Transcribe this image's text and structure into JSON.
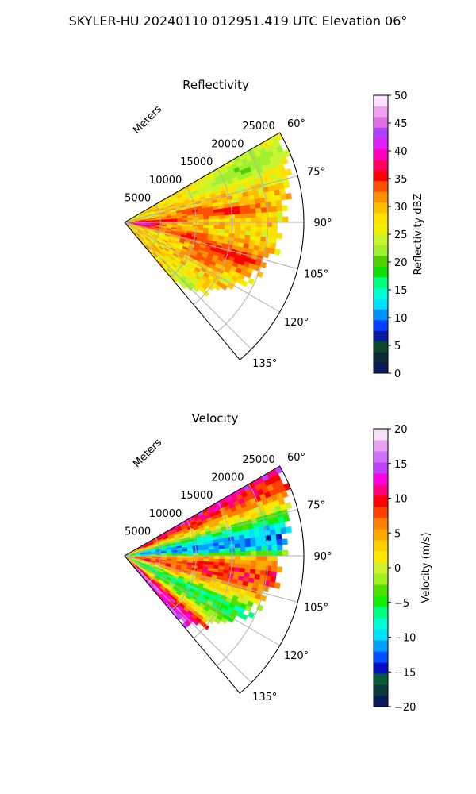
{
  "figure": {
    "title": "SKYLER-HU  20240110  012951.419 UTC Elevation 06°"
  },
  "chart_data": [
    {
      "type": "heatmap",
      "projection": "polar-sector",
      "title": "Reflectivity",
      "range_label": "Meters",
      "range_ticks": [
        5000,
        10000,
        15000,
        20000,
        25000
      ],
      "range_tick_labels": [
        "5000",
        "10000",
        "15000",
        "20000",
        "25000"
      ],
      "rmax": 25000,
      "azimuth_range_deg": [
        60,
        140
      ],
      "azimuth_ticks": [
        60,
        75,
        90,
        105,
        120,
        135
      ],
      "azimuth_tick_labels": [
        "60°",
        "75°",
        "90°",
        "105°",
        "120°",
        "135°"
      ],
      "grid": true,
      "colorbar": {
        "label": "Reflectivity dBZ",
        "min": 0,
        "max": 50,
        "ticks": [
          0,
          5,
          10,
          15,
          20,
          25,
          30,
          35,
          40,
          45,
          50
        ],
        "tick_labels": [
          "0",
          "5",
          "10",
          "15",
          "20",
          "25",
          "30",
          "35",
          "40",
          "45",
          "50"
        ],
        "colors": [
          "#0a1a5a",
          "#0a2a3a",
          "#0a4a2a",
          "#0a1aa0",
          "#0040ff",
          "#0090ff",
          "#00e0ff",
          "#00ffd0",
          "#00ff80",
          "#10e000",
          "#50d000",
          "#a0f030",
          "#c8f530",
          "#f0f000",
          "#ffe000",
          "#ffc000",
          "#ff9000",
          "#ff5000",
          "#ff0000",
          "#ff0060",
          "#ff00c0",
          "#e020ff",
          "#b040ff",
          "#e070e0",
          "#f0a0f0",
          "#fbe0fb"
        ]
      },
      "field": {
        "range_bins": 34,
        "azimuth_bins": 40,
        "data_max_range_by_azimuth": [
          [
            60,
            25000
          ],
          [
            70,
            24000
          ],
          [
            80,
            23000
          ],
          [
            90,
            22000
          ],
          [
            100,
            21500
          ],
          [
            110,
            20000
          ],
          [
            120,
            18000
          ],
          [
            130,
            15000
          ],
          [
            140,
            11000
          ]
        ],
        "typical_value": 28,
        "features": [
          {
            "azimuth": 95,
            "range": 2500,
            "value": 42,
            "az_width": 9,
            "r_width": 2500
          },
          {
            "azimuth": 88,
            "range": 6000,
            "value": 36,
            "az_width": 4,
            "r_width": 4000
          },
          {
            "azimuth": 80,
            "range": 9500,
            "value": 35,
            "az_width": 3,
            "r_width": 3000
          },
          {
            "azimuth": 84,
            "range": 15000,
            "value": 36,
            "az_width": 3,
            "r_width": 5000
          },
          {
            "azimuth": 102,
            "range": 9000,
            "value": 35,
            "az_width": 5,
            "r_width": 4000
          },
          {
            "azimuth": 107,
            "range": 16000,
            "value": 36,
            "az_width": 5,
            "r_width": 6000
          },
          {
            "azimuth": 115,
            "range": 12000,
            "value": 34,
            "az_width": 4,
            "r_width": 3000
          },
          {
            "azimuth": 66,
            "range": 18000,
            "value": 21,
            "az_width": 6,
            "r_width": 8000
          },
          {
            "azimuth": 135,
            "range": 12500,
            "value": 22,
            "az_width": 5,
            "r_width": 3000
          }
        ]
      }
    },
    {
      "type": "heatmap",
      "projection": "polar-sector",
      "title": "Velocity",
      "range_label": "Meters",
      "range_ticks": [
        5000,
        10000,
        15000,
        20000,
        25000
      ],
      "range_tick_labels": [
        "5000",
        "10000",
        "15000",
        "20000",
        "25000"
      ],
      "rmax": 25000,
      "azimuth_range_deg": [
        60,
        140
      ],
      "azimuth_ticks": [
        60,
        75,
        90,
        105,
        120,
        135
      ],
      "azimuth_tick_labels": [
        "60°",
        "75°",
        "90°",
        "105°",
        "120°",
        "135°"
      ],
      "grid": true,
      "colorbar": {
        "label": "Velocity (m/s)",
        "min": -20,
        "max": 20,
        "ticks": [
          -20,
          -15,
          -10,
          -5,
          0,
          5,
          10,
          15,
          20
        ],
        "tick_labels": [
          "−20",
          "−15",
          "−10",
          "−5",
          "0",
          "5",
          "10",
          "15",
          "20"
        ],
        "colors": [
          "#0a1a5a",
          "#0a3a3a",
          "#0a5a3a",
          "#0010c0",
          "#0050ff",
          "#00a0ff",
          "#00e0ff",
          "#00ffd0",
          "#00ff80",
          "#10f000",
          "#50e000",
          "#a0f020",
          "#d0f030",
          "#ffe800",
          "#ffd000",
          "#ffa800",
          "#ff8000",
          "#ff4000",
          "#ff0000",
          "#ff0080",
          "#ff00e0",
          "#c040ff",
          "#d070ff",
          "#e8a0f0",
          "#f8e0f8"
        ]
      },
      "field": {
        "range_bins": 34,
        "azimuth_bins": 40,
        "data_max_range_by_azimuth": [
          [
            60,
            25000
          ],
          [
            70,
            24000
          ],
          [
            80,
            23000
          ],
          [
            90,
            22000
          ],
          [
            100,
            21500
          ],
          [
            110,
            20000
          ],
          [
            120,
            18000
          ],
          [
            130,
            15000
          ],
          [
            140,
            12000
          ]
        ],
        "profile_by_azimuth": [
          [
            60,
            12
          ],
          [
            66,
            9
          ],
          [
            72,
            2
          ],
          [
            78,
            -8
          ],
          [
            84,
            -12
          ],
          [
            88,
            -8
          ],
          [
            91,
            4
          ],
          [
            96,
            8
          ],
          [
            101,
            9
          ],
          [
            108,
            3
          ],
          [
            115,
            -6
          ],
          [
            122,
            -4
          ],
          [
            127,
            2
          ],
          [
            132,
            11
          ],
          [
            138,
            14
          ]
        ]
      }
    }
  ]
}
